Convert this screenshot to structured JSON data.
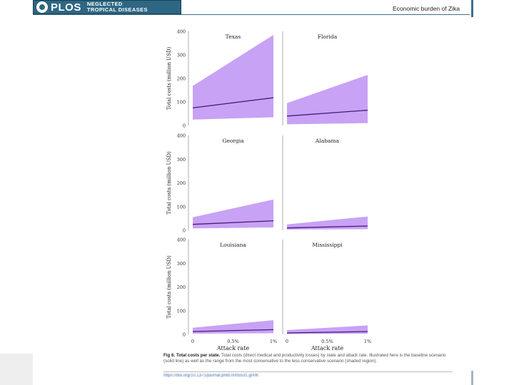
{
  "header": {
    "journal_logo": "PLOS",
    "journal_line1": "NEGLECTED",
    "journal_line2": "TROPICAL DISEASES",
    "running_title": "Economic burden of Zika"
  },
  "chart_data": {
    "type": "area",
    "ylabel": "Total costs (million USD)",
    "xlabel": "Attack rate",
    "x_ticks": [
      "0",
      "0.5%",
      "1%"
    ],
    "y_ticks": [
      0,
      100,
      200,
      300,
      400
    ],
    "ylim": [
      0,
      400
    ],
    "xlim": [
      0,
      1
    ],
    "line_color": "#4b1a7a",
    "band_color": "#c8a2f5",
    "panels": [
      {
        "title": "Texas",
        "x": [
          0,
          1
        ],
        "line": [
          75,
          118
        ],
        "band_low": [
          25,
          35
        ],
        "band_high": [
          168,
          385
        ]
      },
      {
        "title": "Florida",
        "x": [
          0,
          1
        ],
        "line": [
          40,
          65
        ],
        "band_low": [
          5,
          10
        ],
        "band_high": [
          95,
          215
        ]
      },
      {
        "title": "Georgia",
        "x": [
          0,
          1
        ],
        "line": [
          25,
          40
        ],
        "band_low": [
          8,
          12
        ],
        "band_high": [
          55,
          130
        ]
      },
      {
        "title": "Alabama",
        "x": [
          0,
          1
        ],
        "line": [
          10,
          18
        ],
        "band_low": [
          3,
          5
        ],
        "band_high": [
          25,
          58
        ]
      },
      {
        "title": "Louisiana",
        "x": [
          0,
          1
        ],
        "line": [
          12,
          20
        ],
        "band_low": [
          3,
          5
        ],
        "band_high": [
          28,
          60
        ]
      },
      {
        "title": "Mississippi",
        "x": [
          0,
          1
        ],
        "line": [
          6,
          12
        ],
        "band_low": [
          2,
          3
        ],
        "band_high": [
          18,
          38
        ]
      }
    ]
  },
  "caption": {
    "title": "Fig 6. Total costs per state.",
    "text": "Total costs (direct medical and productivity losses) by state and attack rate. Illustrated here is the baseline scenario (solid line) as well as the range from the most conservative to the less conservative scenario (shaded region).",
    "doi": "https://doi.org/10.1371/journal.pntd.0005531.g006"
  }
}
